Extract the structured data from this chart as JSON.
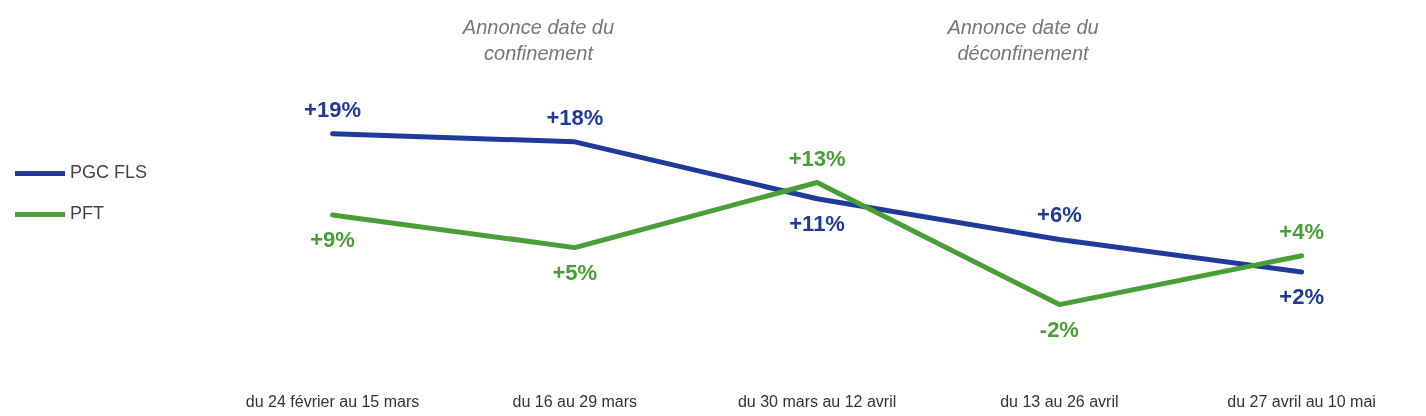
{
  "chart_data": {
    "type": "line",
    "categories": [
      "du 24 février au 15 mars",
      "du 16 au 29 mars",
      "du 30 mars au 12 avril",
      "du 13 au 26 avril",
      "du 27 avril au 10 mai"
    ],
    "series": [
      {
        "name": "PGC FLS",
        "color": "#1f3a9a",
        "values": [
          19,
          18,
          11,
          6,
          2
        ],
        "value_labels": [
          "+19%",
          "+18%",
          "+11%",
          "+6%",
          "+2%"
        ]
      },
      {
        "name": "PFT",
        "color": "#4a9e37",
        "values": [
          9,
          5,
          13,
          -2,
          4
        ],
        "value_labels": [
          "+9%",
          "+5%",
          "+13%",
          "-2%",
          "+4%"
        ]
      }
    ],
    "annotations": [
      "Annonce date du\nconfinement",
      "Annonce date du\ndéconfinement"
    ],
    "legend": "left",
    "grid": false,
    "marker": "none",
    "line_style": "solid"
  }
}
